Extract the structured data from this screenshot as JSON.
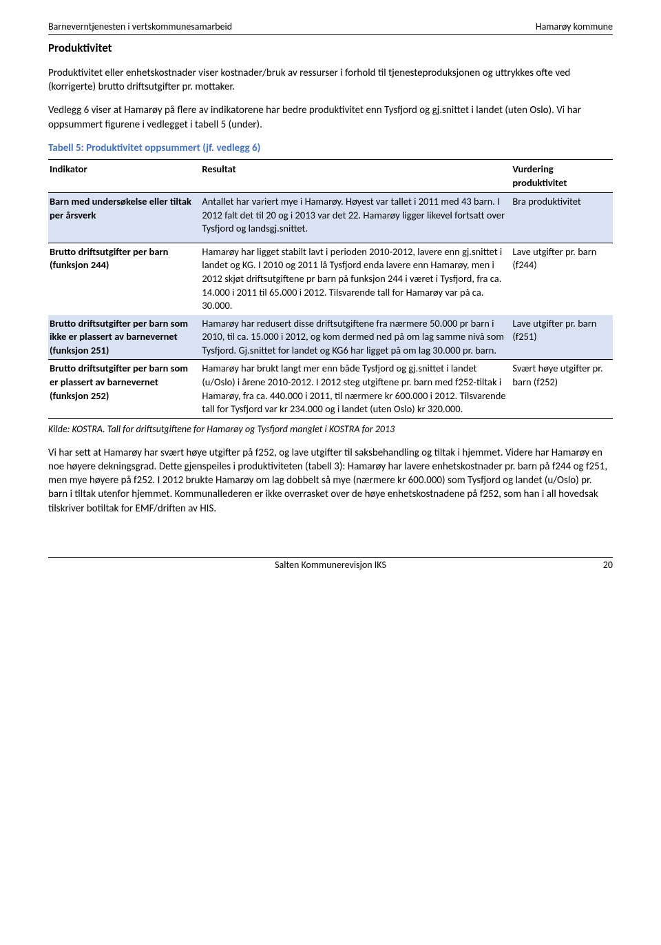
{
  "header": {
    "left": "Barneverntjenesten i vertskommunesamarbeid",
    "right": "Hamarøy kommune"
  },
  "section_title": "Produktivitet",
  "para1": "Produktivitet eller enhetskostnader viser kostnader/bruk av ressurser i forhold til tjenesteproduksjonen og uttrykkes ofte ved (korrigerte) brutto driftsutgifter pr. mottaker.",
  "para2": "Vedlegg 6 viser at Hamarøy på flere av indikatorene har bedre produktivitet enn Tysfjord og gj.snittet i landet (uten Oslo). Vi har oppsummert figurene i vedlegget i tabell 5 (under).",
  "table": {
    "caption": "Tabell 5: Produktivitet oppsummert (jf. vedlegg 6)",
    "columns": {
      "indicator": "Indikator",
      "result": "Resultat",
      "rating": "Vurdering produktivitet"
    },
    "rows": [
      {
        "indicator": "Barn med undersøkelse eller tiltak per årsverk",
        "result": "Antallet har variert mye i Hamarøy. Høyest var tallet i 2011 med 43 barn. I 2012 falt det til 20 og i 2013 var det 22. Hamarøy ligger likevel fortsatt over Tysfjord og landsgj.snittet.",
        "rating": "Bra produktivitet",
        "shaded": true
      },
      {
        "indicator": "Brutto driftsutgifter per barn (funksjon 244)",
        "result": "Hamarøy har ligget stabilt lavt i perioden 2010-2012, lavere enn gj.snittet i landet og KG. I 2010 og 2011 lå Tysfjord enda lavere enn Hamarøy, men i 2012 skjøt driftsutgiftene pr barn på funksjon 244 i været i Tysfjord, fra ca. 14.000 i 2011 til 65.000 i 2012. Tilsvarende tall for Hamarøy var på ca. 30.000.",
        "rating": "Lave utgifter pr. barn (f244)",
        "shaded": false
      },
      {
        "indicator": "Brutto driftsutgifter per barn som ikke er plassert av barnevernet (funksjon 251)",
        "result": "Hamarøy har redusert disse driftsutgiftene fra nærmere 50.000 pr barn i 2010, til ca. 15.000 i 2012, og kom dermed ned på om lag samme nivå som Tysfjord. Gj.snittet for landet og KG6 har ligget på om lag 30.000 pr. barn.",
        "rating": "Lave utgifter pr. barn (f251)",
        "shaded": true
      },
      {
        "indicator": "Brutto driftsutgifter per barn som er plassert av barnevernet (funksjon 252)",
        "result": "Hamarøy har brukt langt mer enn både Tysfjord og gj.snittet i landet (u/Oslo) i årene 2010-2012. I 2012 steg utgiftene pr. barn med f252-tiltak i Hamarøy, fra ca. 440.000 i 2011, til nærmere kr 600.000 i 2012. Tilsvarende tall for Tysfjord var kr 234.000 og i landet (uten Oslo) kr 320.000.",
        "rating": "Svært høye utgifter pr. barn (f252)",
        "shaded": false
      }
    ],
    "footnote": "Kilde: KOSTRA. Tall for driftsutgiftene for Hamarøy og Tysfjord manglet i KOSTRA for 2013"
  },
  "para3": "Vi har sett at Hamarøy har svært høye utgifter på f252, og lave utgifter til saksbehandling og tiltak i hjemmet. Videre har Hamarøy en noe høyere dekningsgrad. Dette gjenspeiles i produktiviteten (tabell 3): Hamarøy har lavere enhetskostnader pr. barn på f244 og f251, men mye høyere på f252. I 2012 brukte Hamarøy om lag dobbelt så mye (nærmere kr 600.000) som Tysfjord og landet (u/Oslo) pr. barn i tiltak utenfor hjemmet. Kommunallederen er ikke overrasket over de høye enhetskostnadene på f252, som han i all hovedsak tilskriver botiltak for EMF/driften av HIS.",
  "footer": {
    "center": "Salten Kommunerevisjon IKS",
    "page": "20"
  }
}
